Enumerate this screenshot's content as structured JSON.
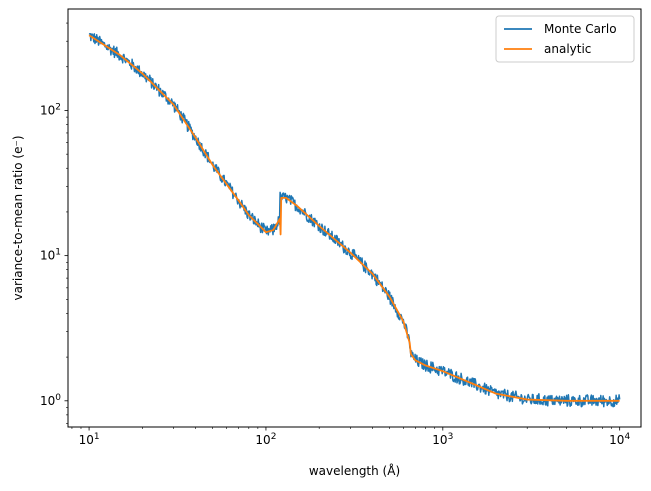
{
  "chart_data": {
    "type": "line",
    "title": "",
    "xlabel": "wavelength (Å)",
    "ylabel": "variance-to-mean ratio (e⁻)",
    "xscale": "log",
    "yscale": "log",
    "xlim": [
      7.6,
      13200
    ],
    "ylim": [
      0.66,
      500
    ],
    "xticks": [
      {
        "value": 10,
        "base": "10",
        "exp": "1"
      },
      {
        "value": 100,
        "base": "10",
        "exp": "2"
      },
      {
        "value": 1000,
        "base": "10",
        "exp": "3"
      },
      {
        "value": 10000,
        "base": "10",
        "exp": "4"
      }
    ],
    "yticks": [
      {
        "value": 1,
        "base": "10",
        "exp": "0"
      },
      {
        "value": 10,
        "base": "10",
        "exp": "1"
      },
      {
        "value": 100,
        "base": "10",
        "exp": "2"
      }
    ],
    "grid": false,
    "legend_position": "top-right",
    "series": [
      {
        "name": "Monte Carlo",
        "color": "#1f77b4",
        "noisy": true,
        "x": [
          10,
          15,
          20,
          30,
          40,
          50,
          60,
          70,
          80,
          90,
          100,
          110,
          120,
          120,
          130,
          150,
          200,
          300,
          400,
          500,
          600,
          650,
          660,
          700,
          800,
          1000,
          1500,
          2000,
          3000,
          5000,
          10000
        ],
        "y": [
          330,
          240,
          180,
          110,
          65,
          42,
          31,
          24,
          19,
          16.5,
          14.5,
          15,
          18,
          25,
          25,
          22,
          16,
          10.5,
          7.5,
          5.2,
          3.5,
          2.5,
          2.1,
          1.9,
          1.75,
          1.6,
          1.3,
          1.12,
          1.02,
          1.0,
          1.0
        ]
      },
      {
        "name": "analytic",
        "color": "#ff7f0e",
        "noisy": false,
        "x": [
          10,
          15,
          20,
          30,
          40,
          50,
          60,
          70,
          80,
          90,
          100,
          110,
          120,
          121,
          122,
          123,
          130,
          150,
          200,
          300,
          400,
          500,
          600,
          650,
          660,
          700,
          800,
          1000,
          1500,
          2000,
          3000,
          5000,
          10000
        ],
        "y": [
          330,
          240,
          180,
          110,
          65,
          42,
          31,
          24,
          19,
          16.5,
          14.5,
          15,
          18,
          14,
          25,
          25,
          25,
          22,
          16,
          10.5,
          7.5,
          5.2,
          3.5,
          2.5,
          2.1,
          1.9,
          1.75,
          1.6,
          1.3,
          1.12,
          1.02,
          1.0,
          1.0
        ]
      }
    ]
  }
}
